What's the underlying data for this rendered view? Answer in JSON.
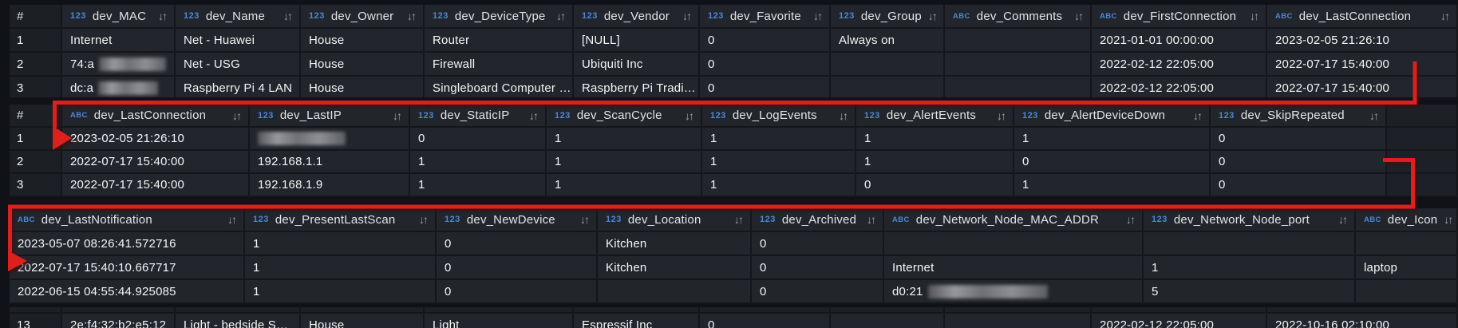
{
  "annotations": {
    "color": "#dc201e",
    "shadow_color": "#4a0c0c"
  },
  "tables": [
    {
      "id": "t1",
      "index_header": "#",
      "columns": [
        {
          "type": "123",
          "label": "dev_MAC"
        },
        {
          "type": "123",
          "label": "dev_Name"
        },
        {
          "type": "123",
          "label": "dev_Owner"
        },
        {
          "type": "123",
          "label": "dev_DeviceType"
        },
        {
          "type": "123",
          "label": "dev_Vendor"
        },
        {
          "type": "123",
          "label": "dev_Favorite"
        },
        {
          "type": "123",
          "label": "dev_Group"
        },
        {
          "type": "ABC",
          "label": "dev_Comments"
        },
        {
          "type": "ABC",
          "label": "dev_FirstConnection"
        },
        {
          "type": "ABC",
          "label": "dev_LastConnection"
        }
      ],
      "rows": [
        {
          "index": "1",
          "cells": [
            "Internet",
            "Net - Huawei",
            "House",
            "Router",
            "[NULL]",
            "0",
            "Always on",
            "",
            "2021-01-01 00:00:00",
            "2023-02-05 21:26:10"
          ]
        },
        {
          "index": "2",
          "cells": [
            {
              "text": "74:a",
              "blur": 95
            },
            "Net - USG",
            "House",
            "Firewall",
            "Ubiquiti Inc",
            "0",
            "",
            "",
            "2022-02-12 22:05:00",
            "2022-07-17 15:40:00"
          ]
        },
        {
          "index": "3",
          "cells": [
            {
              "text": "dc:a",
              "blur": 75
            },
            "Raspberry Pi 4 LAN",
            "House",
            "Singleboard Computer …",
            "Raspberry Pi Tradi…",
            "0",
            "",
            "",
            "2022-02-12 22:05:00",
            "2022-07-17 15:40:00"
          ]
        }
      ]
    },
    {
      "id": "t2",
      "index_header": "#",
      "columns": [
        {
          "type": "ABC",
          "label": "dev_LastConnection"
        },
        {
          "type": "123",
          "label": "dev_LastIP"
        },
        {
          "type": "123",
          "label": "dev_StaticIP"
        },
        {
          "type": "123",
          "label": "dev_ScanCycle"
        },
        {
          "type": "123",
          "label": "dev_LogEvents"
        },
        {
          "type": "123",
          "label": "dev_AlertEvents"
        },
        {
          "type": "123",
          "label": "dev_AlertDeviceDown"
        },
        {
          "type": "123",
          "label": "dev_SkipRepeated"
        },
        {
          "type": "",
          "label": ""
        }
      ],
      "rows": [
        {
          "index": "1",
          "cells": [
            "2023-02-05 21:26:10",
            {
              "text": "",
              "blur": 110
            },
            "0",
            "1",
            "1",
            "1",
            "1",
            "0",
            ""
          ]
        },
        {
          "index": "2",
          "cells": [
            "2022-07-17 15:40:00",
            "192.168.1.1",
            "1",
            "1",
            "1",
            "1",
            "0",
            "0",
            ""
          ]
        },
        {
          "index": "3",
          "cells": [
            "2022-07-17 15:40:00",
            "192.168.1.9",
            "1",
            "1",
            "1",
            "0",
            "1",
            "0",
            ""
          ]
        }
      ]
    },
    {
      "id": "t3",
      "index_header": "",
      "columns": [
        {
          "type": "ABC",
          "label": "dev_LastNotification"
        },
        {
          "type": "123",
          "label": "dev_PresentLastScan"
        },
        {
          "type": "123",
          "label": "dev_NewDevice"
        },
        {
          "type": "123",
          "label": "dev_Location"
        },
        {
          "type": "123",
          "label": "dev_Archived"
        },
        {
          "type": "ABC",
          "label": "dev_Network_Node_MAC_ADDR"
        },
        {
          "type": "123",
          "label": "dev_Network_Node_port"
        },
        {
          "type": "ABC",
          "label": "dev_Icon"
        }
      ],
      "rows": [
        {
          "index": "",
          "cells": [
            "2023-05-07 08:26:41.572716",
            "1",
            "0",
            "Kitchen",
            "0",
            "",
            "",
            ""
          ]
        },
        {
          "index": "",
          "cells": [
            "2022-07-17 15:40:10.667717",
            "1",
            "0",
            "Kitchen",
            "0",
            "Internet",
            "1",
            "laptop"
          ]
        },
        {
          "index": "",
          "cells": [
            "2022-06-15 04:55:44.925085",
            "1",
            "0",
            "",
            "0",
            {
              "text": "d0:21",
              "blur": 150
            },
            "5",
            ""
          ]
        }
      ]
    },
    {
      "id": "t4",
      "index_header": "",
      "columns": [],
      "rows": [
        {
          "index": "13",
          "cells": [
            "2e:f4:32:b2:e5:12",
            "Light - bedside S…",
            "House",
            "Light",
            "Espressif Inc",
            "0",
            "",
            "",
            "2022-02-12 22:05:00",
            "2022-10-16 02:10:00"
          ]
        }
      ]
    }
  ]
}
